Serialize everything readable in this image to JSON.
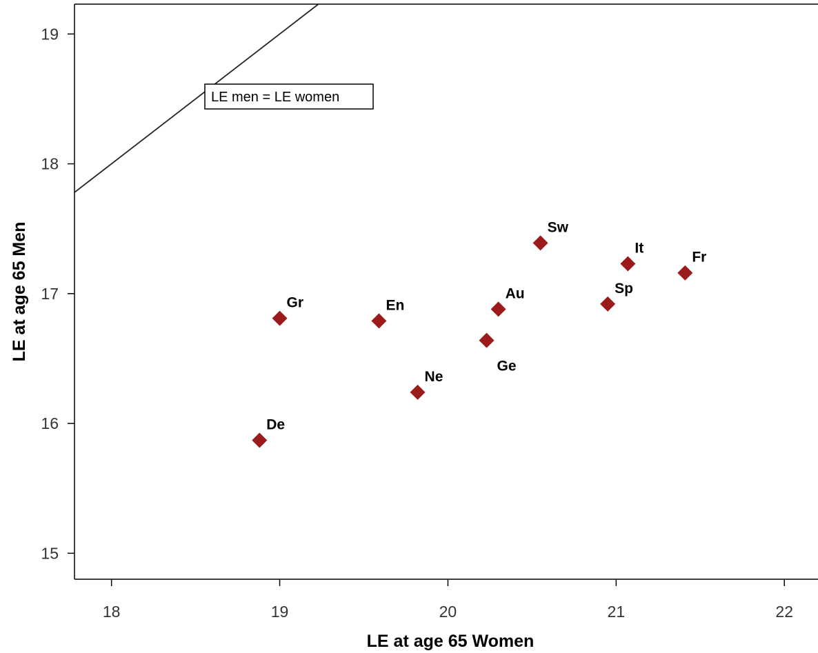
{
  "chart_data": {
    "type": "scatter",
    "xlabel": "LE at age 65 Women",
    "ylabel": "LE at age 65 Men",
    "xlim": [
      17.78,
      22.2
    ],
    "ylim": [
      14.8,
      19.23
    ],
    "xticks": [
      18,
      19,
      20,
      21,
      22
    ],
    "yticks": [
      15,
      16,
      17,
      18,
      19
    ],
    "grid": false,
    "marker": "diamond",
    "marker_color": "#9b1b1b",
    "points": [
      {
        "label": "De",
        "x": 18.88,
        "y": 15.87
      },
      {
        "label": "Gr",
        "x": 19.0,
        "y": 16.81
      },
      {
        "label": "En",
        "x": 19.59,
        "y": 16.79
      },
      {
        "label": "Ne",
        "x": 19.82,
        "y": 16.24
      },
      {
        "label": "Ge",
        "x": 20.23,
        "y": 16.64
      },
      {
        "label": "Au",
        "x": 20.3,
        "y": 16.88
      },
      {
        "label": "Sw",
        "x": 20.55,
        "y": 17.39
      },
      {
        "label": "Sp",
        "x": 20.95,
        "y": 16.92
      },
      {
        "label": "It",
        "x": 21.07,
        "y": 17.23
      },
      {
        "label": "Fr",
        "x": 21.41,
        "y": 17.16
      }
    ],
    "reference_line": {
      "label": "LE men = LE women",
      "x": [
        17.78,
        19.23
      ],
      "y": [
        17.78,
        19.23
      ]
    }
  }
}
